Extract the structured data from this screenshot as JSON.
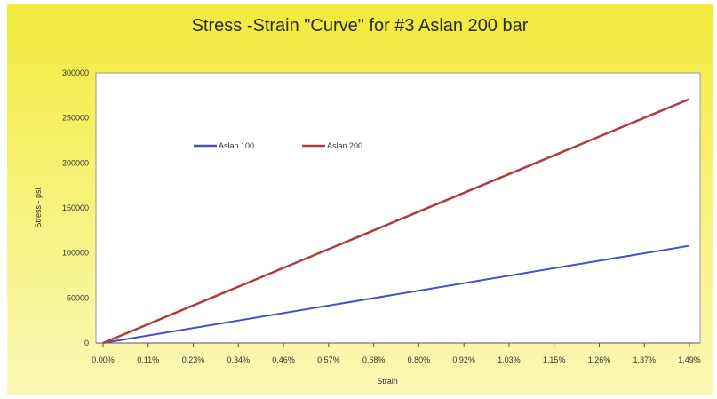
{
  "chart_data": {
    "type": "line",
    "title": "Stress -Strain \"Curve\" for #3 Aslan 200 bar",
    "xlabel": "Strain",
    "ylabel": "Stress - psi",
    "x_ticks": [
      "0.00%",
      "0.11%",
      "0.23%",
      "0.34%",
      "0.46%",
      "0.57%",
      "0.68%",
      "0.80%",
      "0.92%",
      "1.03%",
      "1.15%",
      "1.26%",
      "1.37%",
      "1.49%"
    ],
    "xlim": [
      0,
      1.49
    ],
    "ylim": [
      0,
      300000
    ],
    "y_ticks": [
      "0",
      "50000",
      "100000",
      "150000",
      "200000",
      "250000",
      "300000"
    ],
    "legend_position": "top-left",
    "grid": false,
    "series": [
      {
        "name": "Aslan 100",
        "color": "#4a4fc4",
        "x": [
          0,
          1.49
        ],
        "y": [
          0,
          108000
        ]
      },
      {
        "name": "Aslan 200",
        "color": "#b23a3a",
        "x": [
          0,
          1.49
        ],
        "y": [
          0,
          271000
        ]
      }
    ]
  }
}
